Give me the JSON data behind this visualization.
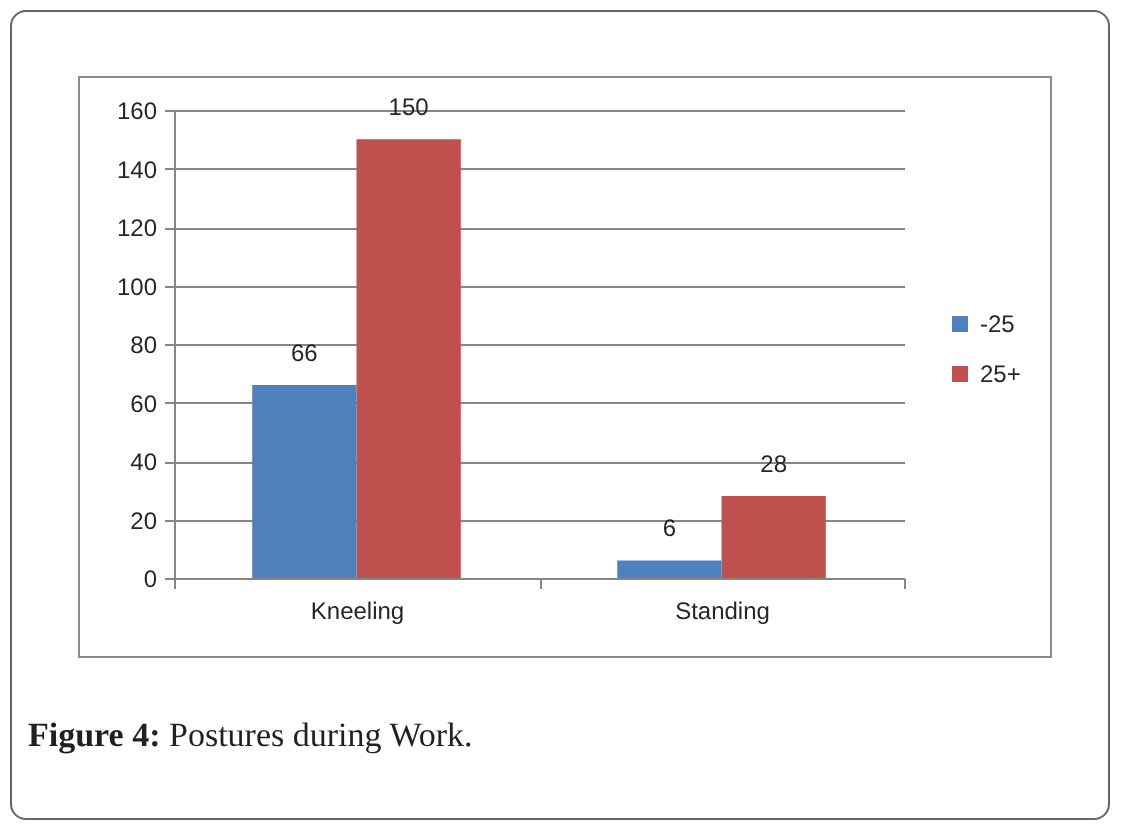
{
  "chart_data": {
    "type": "bar",
    "categories": [
      "Kneeling",
      "Standing"
    ],
    "series": [
      {
        "name": "-25",
        "color": "#4f81bd",
        "values": [
          66,
          6
        ]
      },
      {
        "name": "25+",
        "color": "#c0504d",
        "values": [
          150,
          28
        ]
      }
    ],
    "ylim": [
      0,
      160
    ],
    "yticks": [
      0,
      20,
      40,
      60,
      80,
      100,
      120,
      140,
      160
    ],
    "grid": "y",
    "legend": "right",
    "data_labels": true,
    "annotations": [
      "Figure 4: Postures during Work."
    ]
  }
}
